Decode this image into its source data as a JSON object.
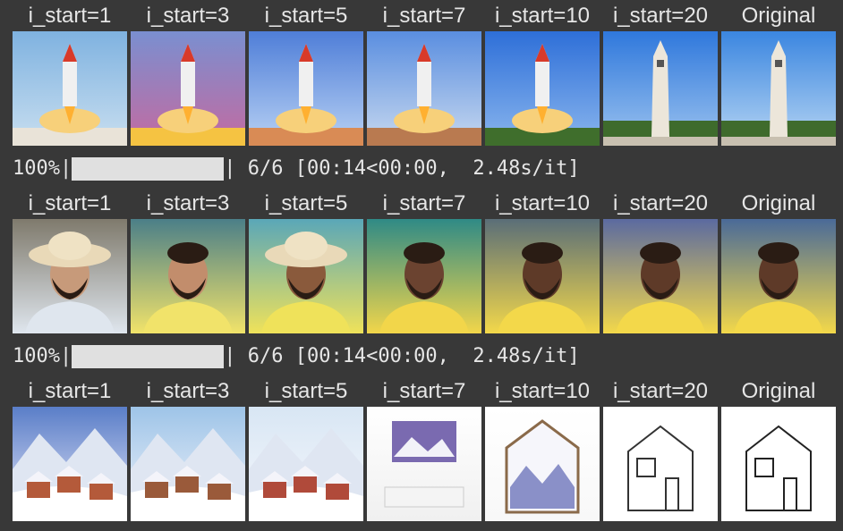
{
  "grids": [
    {
      "labels": [
        "i_start=1",
        "i_start=3",
        "i_start=5",
        "i_start=7",
        "i_start=10",
        "i_start=20",
        "Original"
      ]
    },
    {
      "labels": [
        "i_start=1",
        "i_start=3",
        "i_start=5",
        "i_start=7",
        "i_start=10",
        "i_start=20",
        "Original"
      ]
    },
    {
      "labels": [
        "i_start=1",
        "i_start=3",
        "i_start=5",
        "i_start=7",
        "i_start=10",
        "i_start=20",
        "Original"
      ]
    }
  ],
  "progress": [
    {
      "left": "100%|",
      "right": "| 6/6 [00:14<00:00,  2.48s/it]"
    },
    {
      "left": "100%|",
      "right": "| 6/6 [00:14<00:00,  2.48s/it]"
    }
  ]
}
